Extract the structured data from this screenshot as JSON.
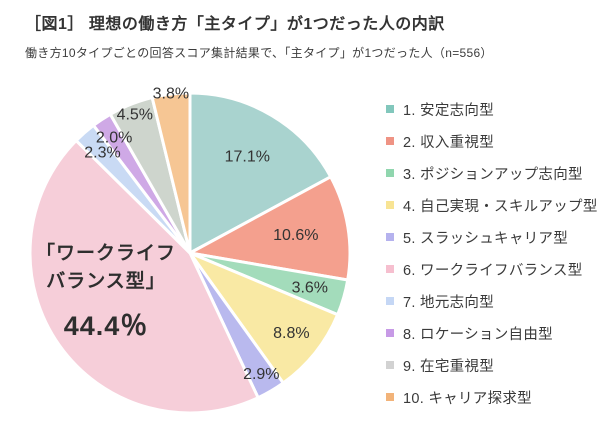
{
  "header": {
    "title": "［図1］ 理想の働き方「主タイプ」が1つだった人の内訳",
    "subtitle": "働き方10タイプごとの回答スコア集計結果で、「主タイプ」が1つだった人（n=556）"
  },
  "chart_data": {
    "type": "pie",
    "title": "理想の働き方「主タイプ」が1つだった人の内訳",
    "n_label": "n=556",
    "start_angle_deg": 0,
    "direction": "clockwise",
    "legend_position": "right",
    "categories": [
      "1. 安定志向型",
      "2. 収入重視型",
      "3. ポジションアップ志向型",
      "4. 自己実現・スキルアップ型",
      "5. スラッシュキャリア型",
      "6. ワークライフバランス型",
      "7. 地元志向型",
      "8. ロケーション自由型",
      "9. 在宅重視型",
      "10. キャリア探求型"
    ],
    "values": [
      17.1,
      10.6,
      3.6,
      8.8,
      2.9,
      44.4,
      2.3,
      2.0,
      4.5,
      3.8
    ],
    "slice_labels": [
      "17.1%",
      "10.6%",
      "3.6%",
      "8.8%",
      "2.9%",
      "",
      "2.3%",
      "2.0%",
      "4.5%",
      "3.8%"
    ],
    "slice_colors": [
      "#a9d3cf",
      "#f4a08e",
      "#a3dcbb",
      "#f9e9a4",
      "#b9b9ee",
      "#f6ced9",
      "#c9daf4",
      "#cfa9e6",
      "#ced5cd",
      "#f6c694"
    ],
    "legend_colors": [
      "#82c7bc",
      "#ef9384",
      "#90d6ae",
      "#f8e494",
      "#b5b2ee",
      "#f6bfcf",
      "#c5d7f5",
      "#c79ae6",
      "#d2d2d2",
      "#f2b379"
    ],
    "label_radius_factors": [
      0.7,
      0.67,
      0.78,
      0.81,
      0.88,
      0,
      0.83,
      0.86,
      0.93,
      1.0
    ],
    "callout": {
      "line1": "「ワークライフ",
      "line2": "バランス型」",
      "value": "44.4％"
    }
  }
}
